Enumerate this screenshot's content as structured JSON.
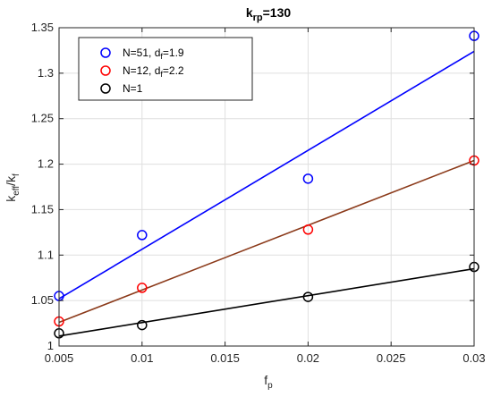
{
  "chart_data": {
    "type": "scatter",
    "title": {
      "main": "k",
      "sub": "rp",
      "rest": "=130"
    },
    "xlabel": {
      "main": "f",
      "sub": "p"
    },
    "ylabel": {
      "p1": "k",
      "s1": "eff",
      "p2": "/k",
      "s2": "f"
    },
    "xlim": [
      0.005,
      0.03
    ],
    "ylim": [
      1.0,
      1.35
    ],
    "xticks": [
      0.005,
      0.01,
      0.015,
      0.02,
      0.025,
      0.03
    ],
    "xtick_labels": [
      "0.005",
      "0.01",
      "0.015",
      "0.02",
      "0.025",
      "0.03"
    ],
    "yticks": [
      1.0,
      1.05,
      1.1,
      1.15,
      1.2,
      1.25,
      1.3,
      1.35
    ],
    "ytick_labels": [
      "1",
      "1.05",
      "1.1",
      "1.15",
      "1.2",
      "1.25",
      "1.3",
      "1.35"
    ],
    "grid": true,
    "legend_position": "top-left",
    "series": [
      {
        "legend": {
          "main": "N=51, d",
          "sub": "f",
          "rest": "=1.9"
        },
        "color": "#0000ff",
        "x": [
          0.005,
          0.01,
          0.02,
          0.03
        ],
        "y": [
          1.055,
          1.122,
          1.184,
          1.341
        ],
        "fit": [
          [
            0.005,
            1.052
          ],
          [
            0.03,
            1.324
          ]
        ]
      },
      {
        "legend": {
          "main": "N=12, d",
          "sub": "f",
          "rest": "=2.2"
        },
        "color": "#ff0000",
        "fit_color": "#8b3a1a",
        "x": [
          0.005,
          0.01,
          0.02,
          0.03
        ],
        "y": [
          1.027,
          1.064,
          1.128,
          1.204
        ],
        "fit": [
          [
            0.005,
            1.026
          ],
          [
            0.03,
            1.204
          ]
        ]
      },
      {
        "legend": {
          "main": "N=1",
          "sub": "",
          "rest": ""
        },
        "color": "#000000",
        "x": [
          0.005,
          0.01,
          0.02,
          0.03
        ],
        "y": [
          1.014,
          1.023,
          1.054,
          1.087
        ],
        "fit": [
          [
            0.005,
            1.011
          ],
          [
            0.03,
            1.085
          ]
        ]
      }
    ]
  }
}
